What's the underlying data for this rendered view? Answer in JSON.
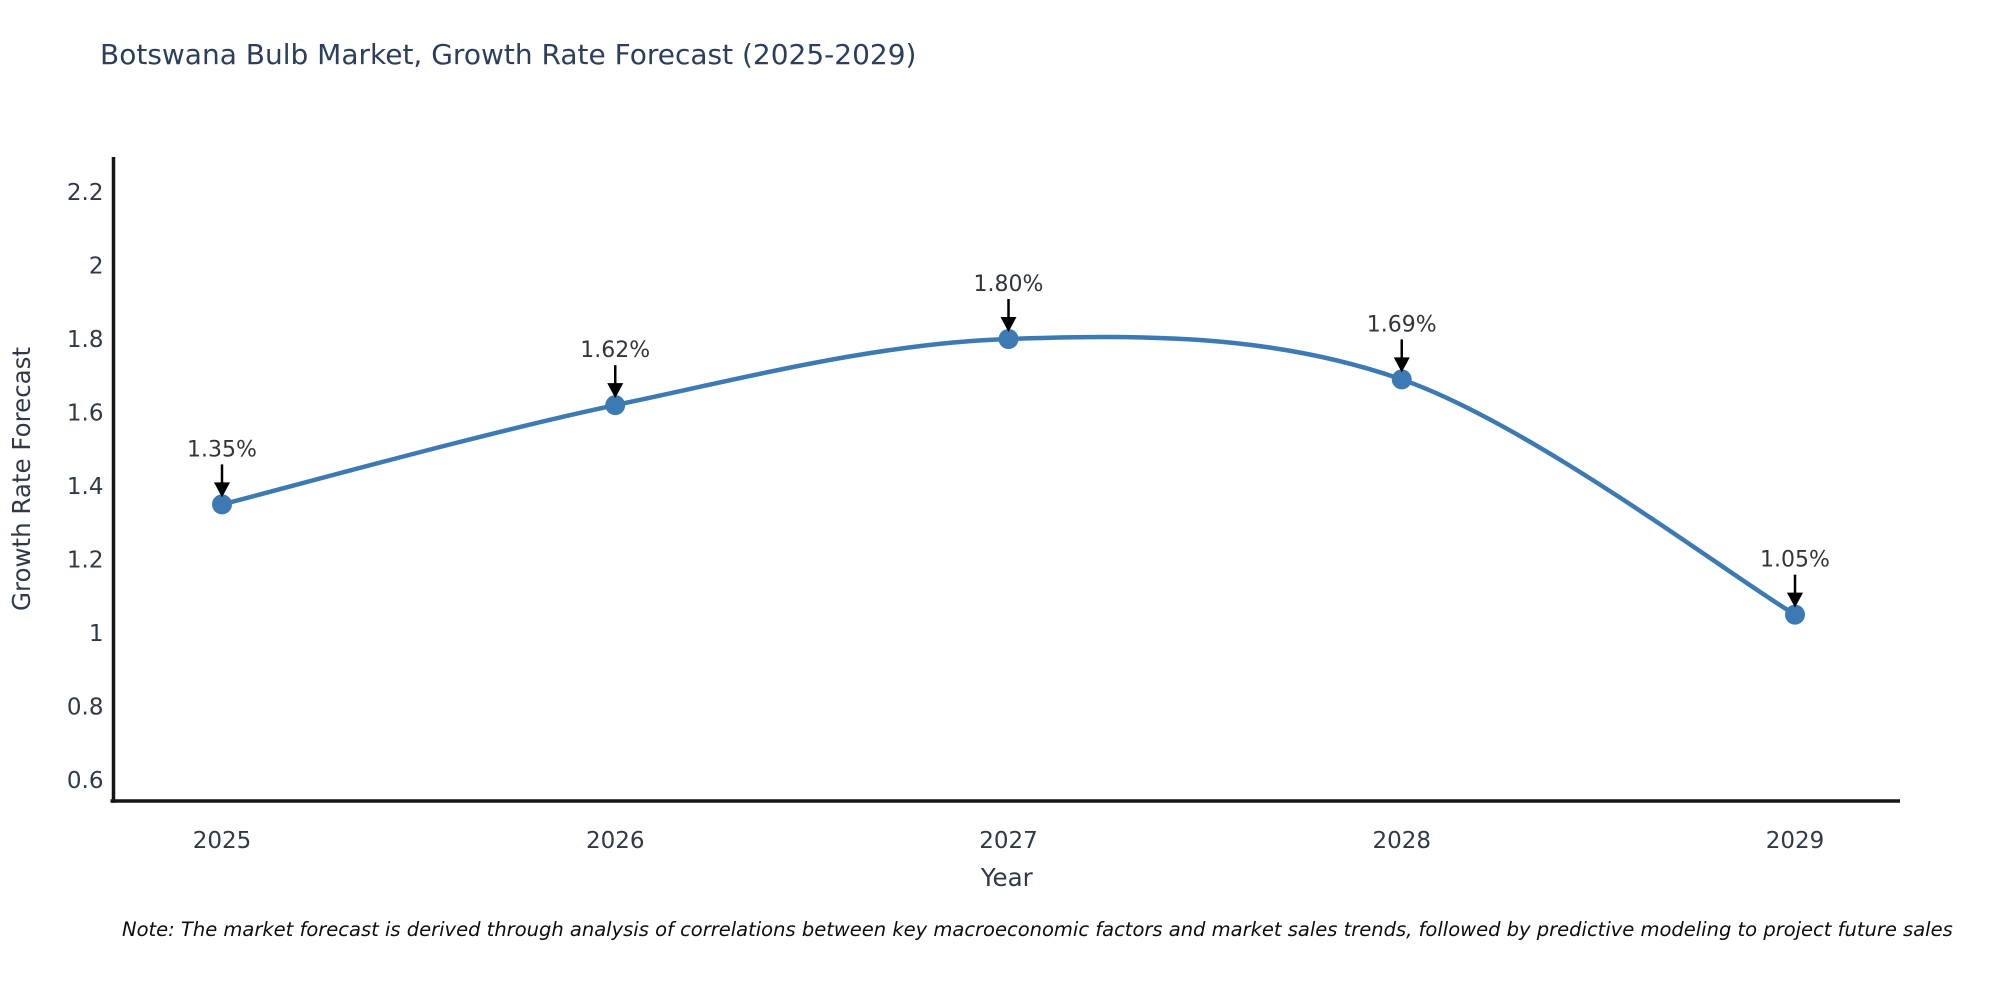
{
  "header": {
    "title": "Botswana Bulb Market, Growth Rate Forecast (2025-2029)"
  },
  "footnote": "Note: The market forecast is derived through analysis of correlations between key macroeconomic factors and market sales trends, followed by predictive modeling to project future sales",
  "colors": {
    "line": "#3D7AB4",
    "marker": "#3D7AB4",
    "axis_line": "#161616",
    "tick_text": "#2e3a48",
    "axis_title_text": "#2e3a48",
    "annotation_text": "#30363c",
    "arrow": "#000000",
    "background": "#ffffff"
  },
  "chart_data": {
    "type": "line",
    "title": "Botswana Bulb Market, Growth Rate Forecast (2025-2029)",
    "xlabel": "Year",
    "ylabel": "Growth Rate Forecast",
    "x": [
      2025,
      2026,
      2027,
      2028,
      2029
    ],
    "y": [
      1.35,
      1.62,
      1.8,
      1.69,
      1.05
    ],
    "point_labels": [
      "1.35%",
      "1.62%",
      "1.80%",
      "1.69%",
      "1.05%"
    ],
    "x_tick_labels": [
      "2025",
      "2026",
      "2027",
      "2028",
      "2029"
    ],
    "y_tick_values": [
      0.6,
      0.8,
      1,
      1.2,
      1.4,
      1.6,
      1.8,
      2,
      2.2
    ],
    "y_tick_labels": [
      "0.6",
      "0.8",
      "1",
      "1.2",
      "1.4",
      "1.6",
      "1.8",
      "2",
      "2.2"
    ],
    "ylim": [
      0.6,
      2.2
    ],
    "xlim": [
      2025,
      2029
    ],
    "line_shape": "spline",
    "grid": false,
    "legend_position": "none",
    "annotations_have_arrows": true
  }
}
